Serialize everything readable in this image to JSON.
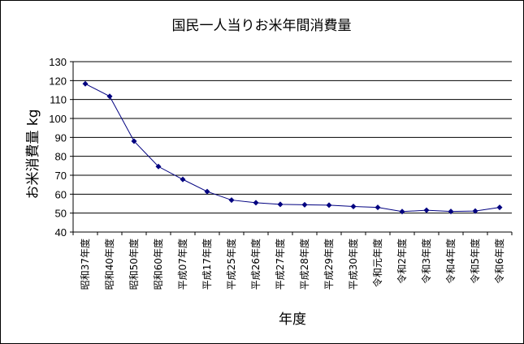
{
  "chart_data": {
    "type": "line",
    "title": "国民一人当りお米年間消費量",
    "xlabel": "年度",
    "ylabel": "お米消費量 kg",
    "categories": [
      "昭和37年度",
      "昭和40年度",
      "昭和50年度",
      "昭和60年度",
      "平成07年度",
      "平成17年度",
      "平成25年度",
      "平成26年度",
      "平成27年度",
      "平成28年度",
      "平成29年度",
      "平成30年度",
      "令和元年度",
      "令和2年度",
      "令和3年度",
      "令和4年度",
      "令和5年度",
      "令和6年度"
    ],
    "values": [
      118.3,
      111.7,
      88.0,
      74.6,
      67.8,
      61.4,
      56.9,
      55.5,
      54.6,
      54.4,
      54.2,
      53.5,
      53.0,
      50.8,
      51.5,
      50.9,
      51.1,
      53.0
    ],
    "ylim": [
      40,
      130
    ],
    "yticks": [
      130,
      120,
      110,
      100,
      90,
      80,
      70,
      60,
      50,
      40
    ],
    "grid": true,
    "legend": "none",
    "colors": {
      "line": "#000080",
      "marker": "#000080",
      "grid": "#000000"
    }
  }
}
